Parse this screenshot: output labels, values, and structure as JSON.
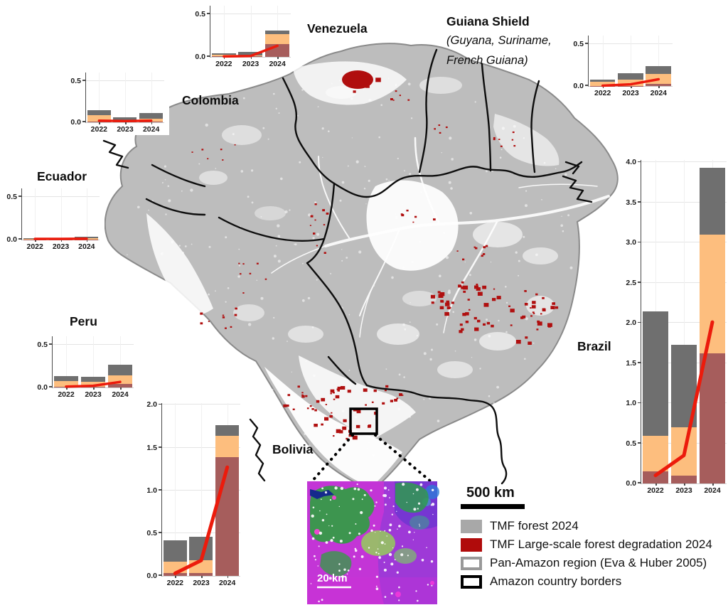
{
  "colors": {
    "bar_gray": "#6f6f6f",
    "bar_orange": "#fdbe7e",
    "bar_dark_red": "#a65d5c",
    "trend_line_red": "#ec1b0c",
    "map_forest_gray": "#bdbdbd",
    "map_degradation_red": "#b00f0f",
    "legend_gray": "#a8a8a8",
    "legend_red": "#b00b0b"
  },
  "legend": {
    "scale_bar_label": "500 km",
    "items": [
      {
        "swatch": "filled-gray",
        "label": "TMF forest 2024"
      },
      {
        "swatch": "filled-red",
        "label": "TMF Large-scale forest degradation 2024"
      },
      {
        "swatch": "outlined-gray",
        "label": "Pan-Amazon region (Eva & Huber 2005)"
      },
      {
        "swatch": "outlined-black",
        "label": "Amazon country borders"
      }
    ]
  },
  "inset": {
    "scale_label": "20 km"
  },
  "chart_data": [
    {
      "id": "venezuela",
      "type": "bar_stacked_with_line",
      "title": "Venezuela",
      "categories": [
        "2022",
        "2023",
        "2024"
      ],
      "ylim": [
        0,
        0.6
      ],
      "yticks": [
        0,
        0.5
      ],
      "series": [
        {
          "name": "dark_red",
          "values": [
            0.005,
            0.005,
            0.15
          ]
        },
        {
          "name": "orange",
          "values": [
            0.02,
            0.01,
            0.115
          ]
        },
        {
          "name": "gray",
          "values": [
            0.013,
            0.04,
            0.045
          ]
        }
      ],
      "trend_line": [
        0.005,
        0.01,
        0.13
      ]
    },
    {
      "id": "colombia",
      "type": "bar_stacked_with_line",
      "title": "Colombia",
      "categories": [
        "2022",
        "2023",
        "2024"
      ],
      "ylim": [
        0,
        0.6
      ],
      "yticks": [
        0,
        0.5
      ],
      "series": [
        {
          "name": "dark_red",
          "values": [
            0.01,
            0.005,
            0.01
          ]
        },
        {
          "name": "orange",
          "values": [
            0.075,
            0.012,
            0.032
          ]
        },
        {
          "name": "gray",
          "values": [
            0.063,
            0.045,
            0.068
          ]
        }
      ],
      "trend_line": [
        0.02,
        0.015,
        0.02
      ]
    },
    {
      "id": "guiana_shield",
      "type": "bar_stacked_with_line",
      "title": "Guiana Shield",
      "subtitle_lines": [
        "(Guyana, Suriname,",
        "French Guiana)"
      ],
      "categories": [
        "2022",
        "2023",
        "2024"
      ],
      "ylim": [
        0,
        0.6
      ],
      "yticks": [
        0,
        0.5
      ],
      "series": [
        {
          "name": "dark_red",
          "values": [
            0.004,
            0.004,
            0.025
          ]
        },
        {
          "name": "orange",
          "values": [
            0.05,
            0.072,
            0.119
          ]
        },
        {
          "name": "gray",
          "values": [
            0.026,
            0.077,
            0.093
          ]
        }
      ],
      "trend_line": [
        0.004,
        0.02,
        0.08
      ]
    },
    {
      "id": "ecuador",
      "type": "bar_stacked_with_line",
      "title": "Ecuador",
      "categories": [
        "2022",
        "2023",
        "2024"
      ],
      "ylim": [
        0,
        0.6
      ],
      "yticks": [
        0,
        0.5
      ],
      "series": [
        {
          "name": "dark_red",
          "values": [
            0.004,
            0.004,
            0.004
          ]
        },
        {
          "name": "orange",
          "values": [
            0.012,
            0.008,
            0.012
          ]
        },
        {
          "name": "gray",
          "values": [
            0.004,
            0.002,
            0.02
          ]
        }
      ],
      "trend_line": [
        0.008,
        0.008,
        0.01
      ]
    },
    {
      "id": "peru",
      "type": "bar_stacked_with_line",
      "title": "Peru",
      "categories": [
        "2022",
        "2023",
        "2024"
      ],
      "ylim": [
        0,
        0.6
      ],
      "yticks": [
        0,
        0.5
      ],
      "series": [
        {
          "name": "dark_red",
          "values": [
            0.008,
            0.008,
            0.04
          ]
        },
        {
          "name": "orange",
          "values": [
            0.065,
            0.057,
            0.105
          ]
        },
        {
          "name": "gray",
          "values": [
            0.064,
            0.064,
            0.121
          ]
        }
      ],
      "trend_line": [
        0.01,
        0.02,
        0.065
      ]
    },
    {
      "id": "bolivia",
      "type": "bar_stacked_with_line",
      "title": "Bolivia",
      "categories": [
        "2022",
        "2023",
        "2024"
      ],
      "ylim": [
        0,
        2.02
      ],
      "yticks": [
        0,
        0.5,
        1.0,
        1.5,
        2.0
      ],
      "series": [
        {
          "name": "dark_red",
          "values": [
            0.03,
            0.03,
            1.385
          ]
        },
        {
          "name": "orange",
          "values": [
            0.135,
            0.153,
            0.255
          ]
        },
        {
          "name": "gray",
          "values": [
            0.25,
            0.273,
            0.12
          ]
        }
      ],
      "trend_line": [
        0.03,
        0.18,
        1.27
      ]
    },
    {
      "id": "brazil",
      "type": "bar_stacked_with_line",
      "title": "Brazil",
      "categories": [
        "2022",
        "2023",
        "2024"
      ],
      "ylim": [
        0,
        4.03
      ],
      "yticks": [
        0,
        0.5,
        1.0,
        1.5,
        2.0,
        2.5,
        3.0,
        3.5,
        4.0
      ],
      "series": [
        {
          "name": "dark_red",
          "values": [
            0.15,
            0.1,
            1.62
          ]
        },
        {
          "name": "orange",
          "values": [
            0.44,
            0.6,
            1.48
          ]
        },
        {
          "name": "gray",
          "values": [
            1.55,
            1.03,
            0.83
          ]
        }
      ],
      "trend_line": [
        0.1,
        0.35,
        2.01
      ]
    }
  ]
}
